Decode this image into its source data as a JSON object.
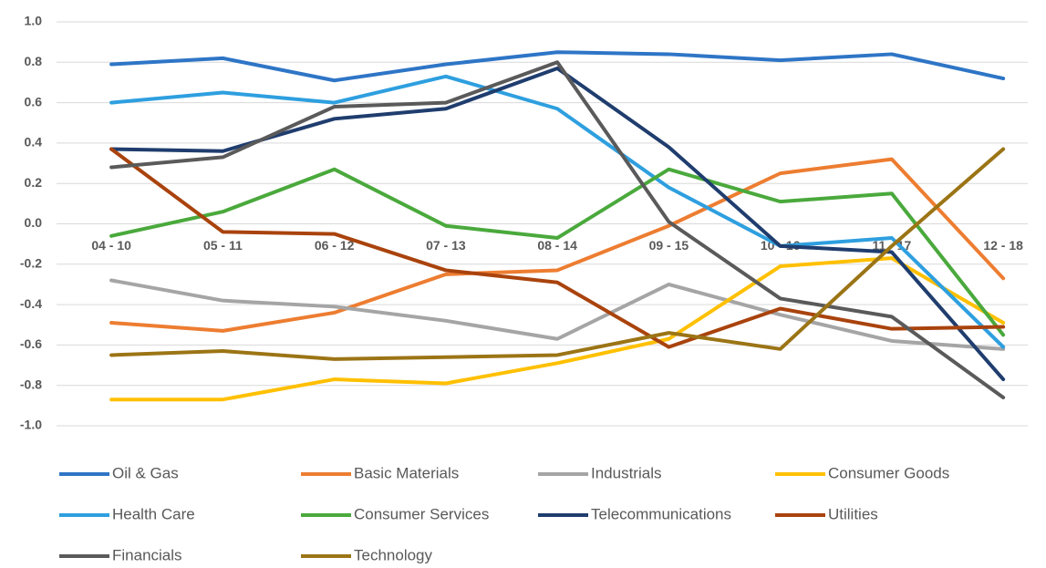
{
  "chart_data": {
    "type": "line",
    "categories": [
      "04 - 10",
      "05 - 11",
      "06 - 12",
      "07 - 13",
      "08 - 14",
      "09 - 15",
      "10 - 16",
      "11 - 17",
      "12 - 18"
    ],
    "series": [
      {
        "name": "Oil & Gas",
        "color": "#2e75c6",
        "values": [
          0.79,
          0.82,
          0.71,
          0.79,
          0.85,
          0.84,
          0.81,
          0.84,
          0.72
        ]
      },
      {
        "name": "Basic Materials",
        "color": "#ed7d31",
        "values": [
          -0.49,
          -0.53,
          -0.44,
          -0.25,
          -0.23,
          -0.01,
          0.25,
          0.32,
          -0.27
        ]
      },
      {
        "name": "Industrials",
        "color": "#a5a5a5",
        "values": [
          -0.28,
          -0.38,
          -0.41,
          -0.48,
          -0.57,
          -0.3,
          -0.45,
          -0.58,
          -0.62
        ]
      },
      {
        "name": "Consumer Goods",
        "color": "#ffc000",
        "values": [
          -0.87,
          -0.87,
          -0.77,
          -0.79,
          -0.69,
          -0.57,
          -0.21,
          -0.17,
          -0.49
        ]
      },
      {
        "name": "Health Care",
        "color": "#2e9fdf",
        "values": [
          0.6,
          0.65,
          0.6,
          0.73,
          0.57,
          0.18,
          -0.11,
          -0.07,
          -0.61
        ]
      },
      {
        "name": "Consumer Services",
        "color": "#4aa93c",
        "values": [
          -0.06,
          0.06,
          0.27,
          -0.01,
          -0.07,
          0.27,
          0.11,
          0.15,
          -0.55
        ]
      },
      {
        "name": "Telecommunications",
        "color": "#1f3d6e",
        "values": [
          0.37,
          0.36,
          0.52,
          0.57,
          0.77,
          0.38,
          -0.11,
          -0.14,
          -0.77
        ]
      },
      {
        "name": "Utilities",
        "color": "#a9430d",
        "values": [
          0.37,
          -0.04,
          -0.05,
          -0.23,
          -0.29,
          -0.61,
          -0.42,
          -0.52,
          -0.51
        ]
      },
      {
        "name": "Financials",
        "color": "#5a5a5a",
        "values": [
          0.28,
          0.33,
          0.58,
          0.6,
          0.8,
          0.01,
          -0.37,
          -0.46,
          -0.86
        ]
      },
      {
        "name": "Technology",
        "color": "#9b7415",
        "values": [
          -0.65,
          -0.63,
          -0.67,
          -0.66,
          -0.65,
          -0.54,
          -0.62,
          -0.11,
          0.37
        ]
      }
    ],
    "ylim": [
      -1.0,
      1.0
    ],
    "yticks": [
      {
        "value": -1.0,
        "label": "-1.0"
      },
      -0.8,
      -0.6,
      -0.4,
      -0.2,
      {
        "value": 0.0,
        "label": "0.0"
      },
      0.2,
      0.4,
      0.6,
      0.8,
      {
        "value": 1.0,
        "label": "1.0"
      }
    ],
    "grid": true,
    "legend": "bottom"
  }
}
